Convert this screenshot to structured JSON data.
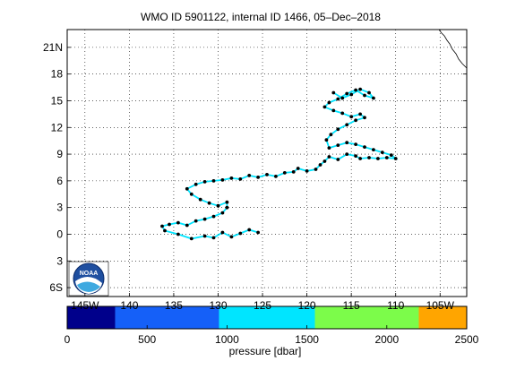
{
  "title": "WMO ID 5901122, internal ID 1466, 05–Dec–2018",
  "map": {
    "lon_range": [
      -147,
      -102
    ],
    "lat_range": [
      -7,
      23
    ],
    "lat_ticks": [
      -6,
      -3,
      0,
      3,
      6,
      9,
      12,
      15,
      18,
      21
    ],
    "lat_tick_labels": [
      "6S",
      "3",
      "0",
      "3",
      "6",
      "9",
      "12",
      "15",
      "18",
      "21N"
    ],
    "lon_ticks": [
      -145,
      -140,
      -135,
      -130,
      -125,
      -120,
      -115,
      -110,
      -105
    ],
    "lon_tick_labels": [
      "145W",
      "140",
      "135",
      "130",
      "125",
      "120",
      "115",
      "110",
      "105W"
    ],
    "grid": "dotted",
    "coastline_color": "#000000",
    "trajectory_line_color": "#00e5ff",
    "float_marker_color": "#000000",
    "logo": {
      "name": "noaa-logo",
      "text": "NOAA",
      "position": "bottom-left"
    }
  },
  "colorbar": {
    "label": "pressure [dbar]",
    "ticks": [
      0,
      500,
      1000,
      1500,
      2000,
      2500
    ],
    "tick_labels": [
      "0",
      "500",
      "1000",
      "1500",
      "2000",
      "2500"
    ],
    "segments": [
      {
        "from": 0,
        "to": 300,
        "color": "#00008b"
      },
      {
        "from": 300,
        "to": 950,
        "color": "#1560f8"
      },
      {
        "from": 950,
        "to": 1550,
        "color": "#00e5ff"
      },
      {
        "from": 1550,
        "to": 2200,
        "color": "#7cfc4a"
      },
      {
        "from": 2200,
        "to": 2500,
        "color": "#ffa500"
      }
    ]
  },
  "trajectory": {
    "lon": [
      -125.5,
      -126.5,
      -127.5,
      -128.5,
      -129.5,
      -130.5,
      -131.5,
      -133.0,
      -134.5,
      -136.0,
      -136.3,
      -135.5,
      -134.5,
      -133.5,
      -132.5,
      -131.5,
      -130.5,
      -129.5,
      -129.0,
      -129.0,
      -130.0,
      -131.0,
      -132.0,
      -133.0,
      -133.5,
      -132.5,
      -131.5,
      -130.5,
      -129.5,
      -128.5,
      -127.5,
      -126.5,
      -125.5,
      -124.5,
      -123.5,
      -122.5,
      -121.5,
      -121.0,
      -120.0,
      -119.0,
      -118.5,
      -118.0,
      -117.5,
      -116.5,
      -115.5,
      -114.5,
      -114.0,
      -113.0,
      -112.0,
      -111.0,
      -110.0,
      -110.5,
      -111.5,
      -112.5,
      -113.5,
      -114.5,
      -115.5,
      -116.5,
      -117.5,
      -117.8,
      -117.3,
      -116.5,
      -115.5,
      -114.5,
      -113.5,
      -114.0,
      -115.0,
      -116.0,
      -117.0,
      -118.0,
      -117.5,
      -116.5,
      -115.5,
      -114.5,
      -113.5,
      -112.5,
      -113.0,
      -114.0,
      -115.0,
      -116.0,
      -117.0
    ],
    "lat": [
      0.2,
      0.5,
      0.1,
      -0.3,
      0.2,
      -0.4,
      -0.2,
      -0.5,
      0.0,
      0.4,
      0.9,
      1.1,
      1.3,
      1.0,
      1.5,
      1.7,
      2.0,
      2.4,
      3.0,
      3.6,
      3.2,
      3.5,
      3.9,
      4.5,
      5.1,
      5.6,
      5.9,
      6.0,
      6.1,
      6.3,
      6.2,
      6.6,
      6.4,
      6.7,
      6.5,
      6.9,
      7.0,
      7.4,
      7.1,
      7.3,
      7.8,
      8.2,
      8.7,
      8.4,
      9.0,
      8.8,
      8.5,
      8.6,
      8.5,
      8.6,
      8.5,
      8.9,
      9.2,
      9.5,
      9.8,
      10.1,
      10.3,
      10.0,
      9.7,
      10.6,
      11.2,
      11.8,
      12.3,
      12.8,
      13.1,
      13.5,
      13.2,
      13.6,
      13.9,
      14.3,
      14.8,
      15.2,
      15.8,
      16.2,
      15.6,
      15.3,
      15.9,
      16.3,
      15.7,
      15.3,
      15.9
    ]
  }
}
